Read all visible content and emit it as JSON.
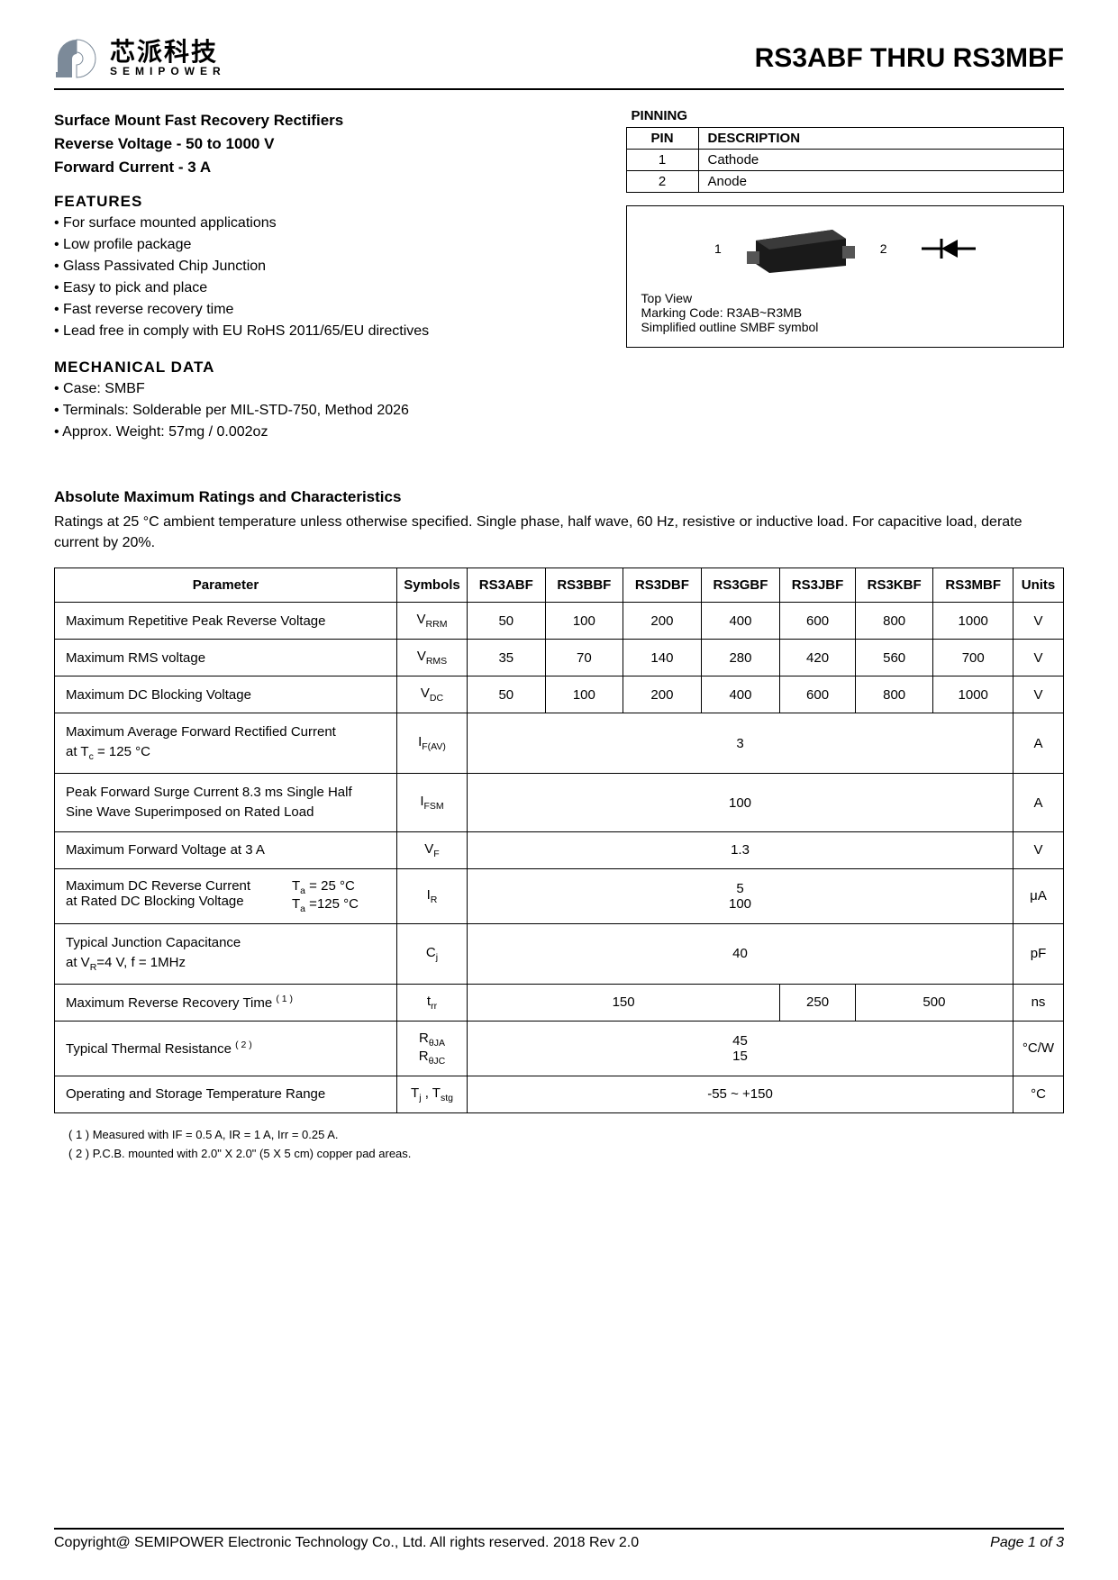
{
  "logo": {
    "cn": "芯派科技",
    "en": "SEMIPOWER"
  },
  "part_title": "RS3ABF THRU RS3MBF",
  "headline": "Surface Mount Fast Recovery Rectifiers",
  "rev_voltage": "Reverse Voltage - 50 to 1000 V",
  "fwd_current": "Forward Current - 3 A",
  "features_title": "FEATURES",
  "features": [
    "For surface mounted applications",
    "Low profile package",
    "Glass Passivated Chip Junction",
    "Easy to pick and place",
    "Fast reverse recovery time",
    "Lead free in comply with EU RoHS 2011/65/EU directives"
  ],
  "mech_title": "MECHANICAL DATA",
  "mech": [
    "Case: SMBF",
    "Terminals: Solderable per MIL-STD-750, Method 2026",
    "Approx. Weight:  57mg / 0.002oz"
  ],
  "pinning_title": "PINNING",
  "pinning_header": {
    "pin": "PIN",
    "desc": "DESCRIPTION"
  },
  "pinning_rows": [
    {
      "pin": "1",
      "desc": "Cathode"
    },
    {
      "pin": "2",
      "desc": "Anode"
    }
  ],
  "pkg_label_1": "1",
  "pkg_label_2": "2",
  "pkg_note1": "Top View",
  "pkg_note2": "Marking Code:  R3AB~R3MB",
  "pkg_note3": "Simplified outline SMBF  symbol",
  "abs_title": "Absolute Maximum Ratings and Characteristics",
  "abs_note": "Ratings at 25 °C ambient temperature unless otherwise specified. Single phase, half wave, 60 Hz, resistive or inductive load. For capacitive load, derate current by 20%.",
  "columns": [
    "RS3ABF",
    "RS3BBF",
    "RS3DBF",
    "RS3GBF",
    "RS3JBF",
    "RS3KBF",
    "RS3MBF"
  ],
  "hdr": {
    "param": "Parameter",
    "symbol": "Symbols",
    "units": "Units"
  },
  "rows": [
    {
      "param": "Maximum Repetitive Peak Reverse Voltage",
      "sym": "V",
      "sub": "RRM",
      "vals": [
        "50",
        "100",
        "200",
        "400",
        "600",
        "800",
        "1000"
      ],
      "units": "V"
    },
    {
      "param": "Maximum RMS voltage",
      "sym": "V",
      "sub": "RMS",
      "vals": [
        "35",
        "70",
        "140",
        "280",
        "420",
        "560",
        "700"
      ],
      "units": "V"
    },
    {
      "param": "Maximum DC Blocking Voltage",
      "sym": "V",
      "sub": "DC",
      "vals": [
        "50",
        "100",
        "200",
        "400",
        "600",
        "800",
        "1000"
      ],
      "units": "V"
    },
    {
      "param_lines": [
        "Maximum Average Forward Rectified Current",
        "at Tc = 125 °C"
      ],
      "sym": "I",
      "sub": "F(AV)",
      "span": "3",
      "units": "A"
    },
    {
      "param_lines": [
        "Peak Forward Surge Current 8.3 ms Single Half",
        "Sine Wave Superimposed on Rated Load"
      ],
      "sym": "I",
      "sub": "FSM",
      "span": "100",
      "units": "A"
    },
    {
      "param": "Maximum  Forward Voltage at 3 A",
      "sym": "V",
      "sub": "F",
      "span": "1.3",
      "units": "V"
    },
    {
      "param_twocol": {
        "left": [
          "Maximum DC Reverse Current",
          "at Rated DC Blocking Voltage"
        ],
        "right": [
          "Ta = 25 °C",
          "Ta =125 °C"
        ]
      },
      "sym": "I",
      "sub": "R",
      "span_lines": [
        "5",
        "100"
      ],
      "units": "μA"
    },
    {
      "param_lines": [
        "Typical Junction Capacitance",
        "at VR=4 V, f = 1MHz"
      ],
      "sym": "C",
      "sub": "j",
      "span": "40",
      "units": "pF"
    },
    {
      "param_html": "Maximum Reverse Recovery Time <span class=\"sup\">( 1 )</span>",
      "sym": "t",
      "sub": "rr",
      "groups": [
        {
          "span": 4,
          "val": "150"
        },
        {
          "span": 1,
          "val": "250"
        },
        {
          "span": 2,
          "val": "500"
        }
      ],
      "units": "ns"
    },
    {
      "param_html": "Typical Thermal Resistance <span class=\"sup\">( 2 )</span>",
      "sym_lines": [
        {
          "s": "R",
          "sub": "θJA"
        },
        {
          "s": "R",
          "sub": "θJC"
        }
      ],
      "span_lines": [
        "45",
        "15"
      ],
      "units": "°C/W"
    },
    {
      "param": "Operating and Storage Temperature Range",
      "sym_plain": "Tj , Tstg",
      "span": "-55 ~ +150",
      "units": "°C"
    }
  ],
  "footnote1": "( 1 ) Measured with IF = 0.5 A, IR = 1 A, Irr = 0.25 A.",
  "footnote2": "( 2 ) P.C.B. mounted with 2.0\" X 2.0\" (5 X 5 cm) copper pad areas.",
  "copyright": "Copyright@ SEMIPOWER Electronic Technology Co., Ltd.  All rights reserved.  2018  Rev  2.0",
  "pagenum": "Page 1 of 3",
  "colors": {
    "chip": "#1a1a1a",
    "chip_top": "#333333",
    "logo_arc": "#7c8a99"
  }
}
